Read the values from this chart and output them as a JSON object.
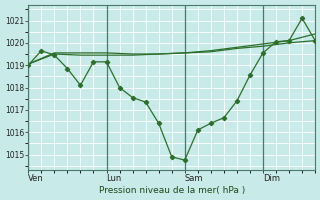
{
  "xlabel": "Pression niveau de la mer( hPa )",
  "bg_color": "#c8eae8",
  "grid_color": "#b0d8d5",
  "line_color": "#2d6e2d",
  "ylim": [
    1014.3,
    1021.7
  ],
  "yticks": [
    1015,
    1016,
    1017,
    1018,
    1019,
    1020,
    1021
  ],
  "xtick_labels": [
    "Ven",
    "Lun",
    "Sam",
    "Dim"
  ],
  "xtick_positions": [
    0,
    30,
    60,
    90
  ],
  "xlim": [
    0,
    110
  ],
  "vline_positions": [
    0,
    30,
    60,
    90
  ],
  "series1_x": [
    0,
    5,
    10,
    15,
    20,
    25,
    30,
    35,
    40,
    45,
    50,
    55,
    60,
    65,
    70,
    75,
    80,
    85,
    90,
    95,
    100,
    105,
    110
  ],
  "series1_y": [
    1019.0,
    1019.65,
    1019.45,
    1018.85,
    1018.1,
    1019.15,
    1019.15,
    1018.0,
    1017.55,
    1017.35,
    1016.4,
    1014.9,
    1014.75,
    1016.1,
    1016.4,
    1016.65,
    1017.4,
    1018.55,
    1019.55,
    1020.05,
    1020.1,
    1021.1,
    1020.1
  ],
  "series2_x": [
    0,
    10,
    20,
    30,
    40,
    50,
    60,
    70,
    80,
    90,
    100,
    110
  ],
  "series2_y": [
    1019.05,
    1019.5,
    1019.45,
    1019.45,
    1019.45,
    1019.5,
    1019.55,
    1019.65,
    1019.8,
    1019.95,
    1020.1,
    1020.4
  ],
  "series3_x": [
    0,
    10,
    20,
    30,
    40,
    50,
    60,
    70,
    80,
    90,
    100,
    110
  ],
  "series3_y": [
    1019.05,
    1019.55,
    1019.55,
    1019.55,
    1019.5,
    1019.5,
    1019.55,
    1019.6,
    1019.75,
    1019.85,
    1020.0,
    1020.1
  ]
}
